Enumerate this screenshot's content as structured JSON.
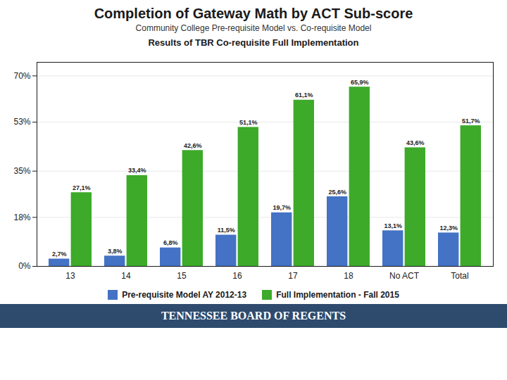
{
  "chart_data": {
    "type": "bar",
    "title": "Completion of Gateway Math by ACT Sub-score",
    "subtitle": "Community College Pre-requisite Model vs. Co-requisite Model",
    "annotations": [
      "Results of TBR Co-requisite Full Implementation",
      "TENNESSEE BOARD OF REGENTS"
    ],
    "categories": [
      "13",
      "14",
      "15",
      "16",
      "17",
      "18",
      "No ACT",
      "Total"
    ],
    "series": [
      {
        "name": "Pre-requisite Model AY 2012-13",
        "color": "#4472C4",
        "values": [
          2.7,
          3.8,
          6.8,
          11.5,
          19.7,
          25.6,
          13.1,
          12.3
        ],
        "value_labels": [
          "2,7%",
          "3,8%",
          "6,8%",
          "11,5%",
          "19,7%",
          "25,6%",
          "13,1%",
          "12,3%"
        ]
      },
      {
        "name": "Full Implementation - Fall 2015",
        "color": "#3DAA2A",
        "values": [
          27.1,
          33.4,
          42.6,
          51.1,
          61.1,
          65.9,
          43.6,
          51.7
        ],
        "value_labels": [
          "27,1%",
          "33,4%",
          "42,6%",
          "51,1%",
          "61,1%",
          "65,9%",
          "43,6%",
          "51,7%"
        ]
      }
    ],
    "ylim": [
      0,
      75
    ],
    "yticks": [
      {
        "value": 0,
        "label": "0%"
      },
      {
        "value": 18,
        "label": "18%"
      },
      {
        "value": 35,
        "label": "35%"
      },
      {
        "value": 53,
        "label": "53%"
      },
      {
        "value": 70,
        "label": "70%"
      }
    ],
    "grid": true,
    "legend": "bottom",
    "data_labels": true
  }
}
